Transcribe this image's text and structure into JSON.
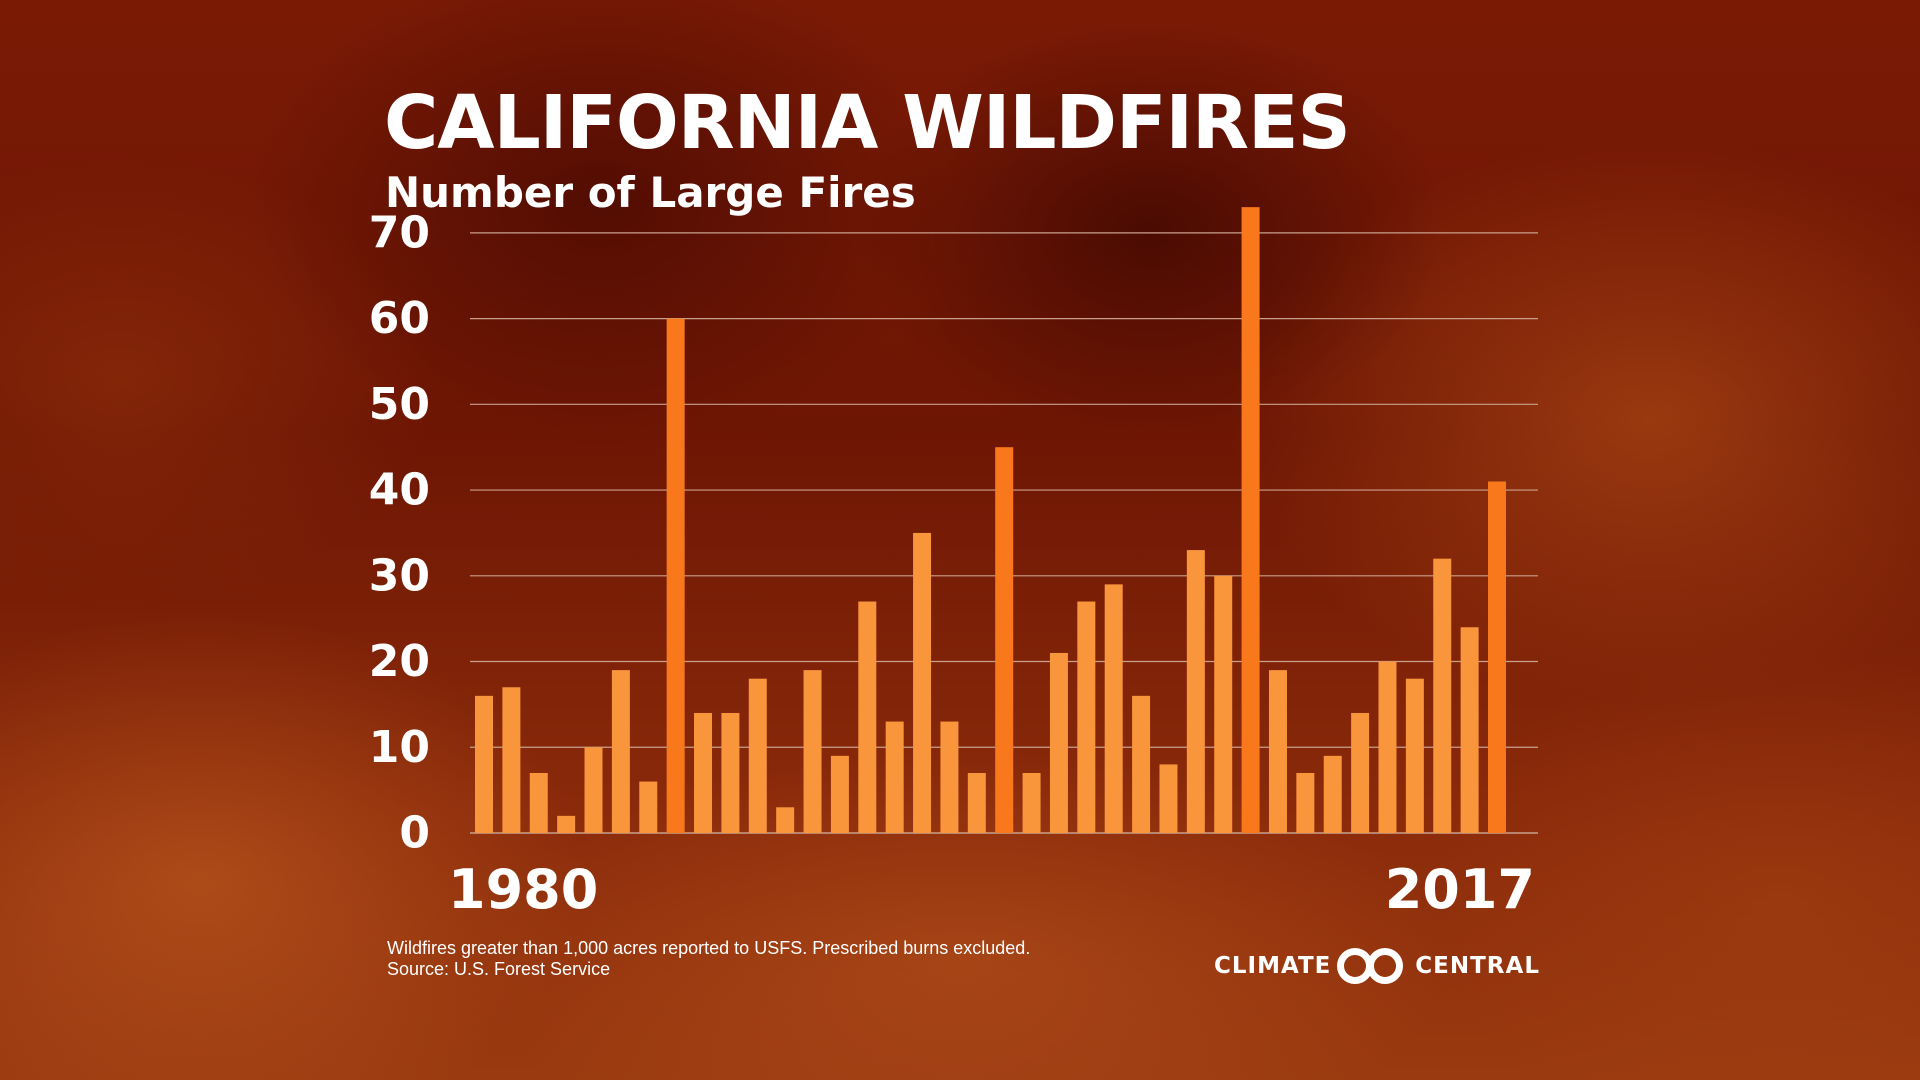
{
  "header": {
    "title": "CALIFORNIA WILDFIRES",
    "subtitle": "Number of Large Fires"
  },
  "footnote": {
    "line1": "Wildfires greater than 1,000 acres reported to USFS. Prescribed burns excluded.",
    "line2": "Source: U.S. Forest Service"
  },
  "logo": {
    "left_word": "CLIMATE",
    "right_word": "CENTRAL"
  },
  "colors": {
    "bar_fill": "#f9953a",
    "bar_fill_peak": "#f9781c",
    "gridline": "#c9a08c",
    "text": "#ffffff"
  },
  "chart_data": {
    "type": "bar",
    "title": "CALIFORNIA WILDFIRES",
    "subtitle": "Number of Large Fires",
    "xlabel": "",
    "ylabel": "",
    "x_tick_labels": [
      "1980",
      "2017"
    ],
    "x": [
      1980,
      1981,
      1982,
      1983,
      1984,
      1985,
      1986,
      1987,
      1988,
      1989,
      1990,
      1991,
      1992,
      1993,
      1994,
      1995,
      1996,
      1997,
      1998,
      1999,
      2000,
      2001,
      2002,
      2003,
      2004,
      2005,
      2006,
      2007,
      2008,
      2009,
      2010,
      2011,
      2012,
      2013,
      2014,
      2015,
      2016,
      2017
    ],
    "values": [
      16,
      17,
      7,
      2,
      10,
      19,
      6,
      60,
      14,
      14,
      18,
      3,
      19,
      9,
      27,
      13,
      35,
      13,
      7,
      45,
      7,
      21,
      27,
      29,
      16,
      8,
      33,
      30,
      73,
      19,
      7,
      9,
      14,
      20,
      18,
      32,
      24,
      41
    ],
    "yticks": [
      0,
      10,
      20,
      30,
      40,
      50,
      60,
      70
    ],
    "ylim": [
      0,
      75
    ],
    "grid": true,
    "legend": "none"
  }
}
